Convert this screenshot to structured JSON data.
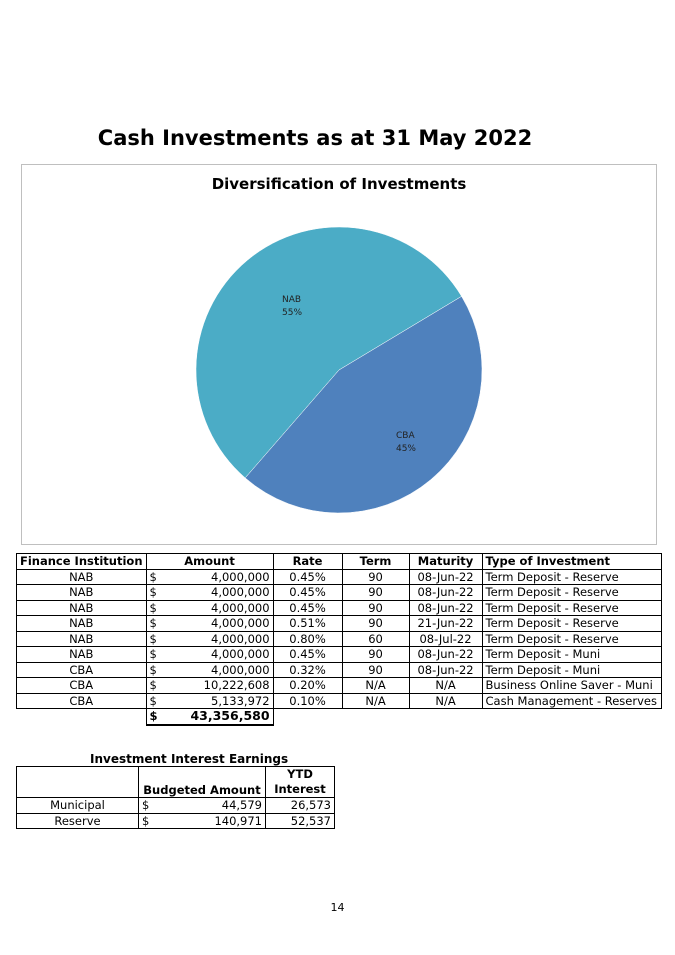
{
  "page": {
    "title": "Cash Investments as at 31 May 2022",
    "page_number": "14"
  },
  "chart_data": {
    "type": "pie",
    "title": "Diversification of Investments",
    "slices": [
      {
        "name": "NAB",
        "value": 55,
        "label": "55%",
        "color": "#4bacc6"
      },
      {
        "name": "CBA",
        "value": 45,
        "label": "45%",
        "color": "#4f81bd"
      }
    ]
  },
  "investments": {
    "headers": [
      "Finance Institution",
      "Amount",
      "Rate",
      "Term",
      "Maturity",
      "Type of Investment"
    ],
    "rows": [
      {
        "institution": "NAB",
        "currency": "$",
        "amount": "4,000,000",
        "rate": "0.45%",
        "term": "90",
        "maturity": "08-Jun-22",
        "type": "Term Deposit - Reserve"
      },
      {
        "institution": "NAB",
        "currency": "$",
        "amount": "4,000,000",
        "rate": "0.45%",
        "term": "90",
        "maturity": "08-Jun-22",
        "type": "Term Deposit - Reserve"
      },
      {
        "institution": "NAB",
        "currency": "$",
        "amount": "4,000,000",
        "rate": "0.45%",
        "term": "90",
        "maturity": "08-Jun-22",
        "type": "Term Deposit - Reserve"
      },
      {
        "institution": "NAB",
        "currency": "$",
        "amount": "4,000,000",
        "rate": "0.51%",
        "term": "90",
        "maturity": "21-Jun-22",
        "type": "Term Deposit - Reserve"
      },
      {
        "institution": "NAB",
        "currency": "$",
        "amount": "4,000,000",
        "rate": "0.80%",
        "term": "60",
        "maturity": "08-Jul-22",
        "type": "Term Deposit - Reserve"
      },
      {
        "institution": "NAB",
        "currency": "$",
        "amount": "4,000,000",
        "rate": "0.45%",
        "term": "90",
        "maturity": "08-Jun-22",
        "type": "Term Deposit - Muni"
      },
      {
        "institution": "CBA",
        "currency": "$",
        "amount": "4,000,000",
        "rate": "0.32%",
        "term": "90",
        "maturity": "08-Jun-22",
        "type": "Term Deposit - Muni"
      },
      {
        "institution": "CBA",
        "currency": "$",
        "amount": "10,222,608",
        "rate": "0.20%",
        "term": "N/A",
        "maturity": "N/A",
        "type": "Business Online Saver - Muni"
      },
      {
        "institution": "CBA",
        "currency": "$",
        "amount": "5,133,972",
        "rate": "0.10%",
        "term": "N/A",
        "maturity": "N/A",
        "type": "Cash Management - Reserves"
      }
    ],
    "total": {
      "currency": "$",
      "amount": "43,356,580"
    }
  },
  "earnings": {
    "title": "Investment Interest Earnings",
    "headers": {
      "budgeted": "Budgeted Amount",
      "ytd_line1": "YTD",
      "ytd_line2": "Interest"
    },
    "rows": [
      {
        "name": "Municipal",
        "currency": "$",
        "budgeted": "44,579",
        "ytd": "26,573"
      },
      {
        "name": "Reserve",
        "currency": "$",
        "budgeted": "140,971",
        "ytd": "52,537"
      }
    ]
  }
}
